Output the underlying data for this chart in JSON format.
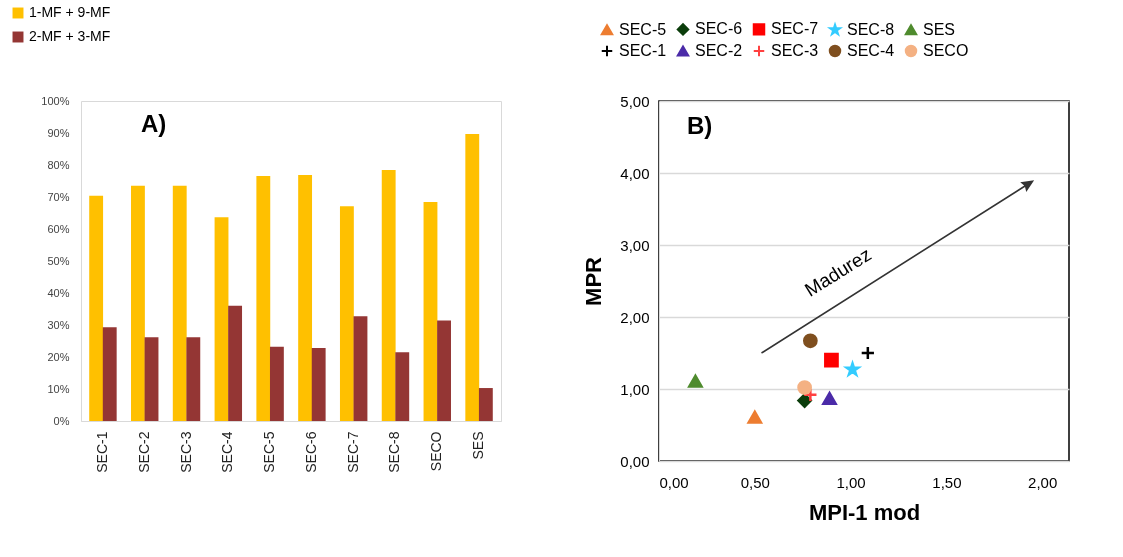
{
  "chart_data": [
    {
      "type": "bar",
      "categories": [
        "SEC-1",
        "SEC-2",
        "SEC-3",
        "SEC-4",
        "SEC-5",
        "SEC-6",
        "SEC-7",
        "SEC-8",
        "SECO",
        "SES"
      ],
      "series": [
        {
          "name": "1-MF + 9-MF",
          "color": "#ffc000",
          "values": [
            70.4,
            73.5,
            73.5,
            63.7,
            76.6,
            76.9,
            67.1,
            78.4,
            68.4,
            89.7
          ]
        },
        {
          "name": "2-MF + 3-MF",
          "color": "#943634",
          "values": [
            29.3,
            26.2,
            26.2,
            36.0,
            23.2,
            22.8,
            32.7,
            21.5,
            31.4,
            10.3
          ]
        }
      ],
      "ylim": [
        0,
        100
      ],
      "yticks": [
        {
          "value": 0,
          "label": "0%"
        },
        {
          "value": 10,
          "label": "10%"
        },
        {
          "value": 20,
          "label": "20%"
        },
        {
          "value": 30,
          "label": "30%"
        },
        {
          "value": 40,
          "label": "40%"
        },
        {
          "value": 50,
          "label": "50%"
        },
        {
          "value": 60,
          "label": "60%"
        },
        {
          "value": 70,
          "label": "70%"
        },
        {
          "value": 80,
          "label": "80%"
        },
        {
          "value": 90,
          "label": "90%"
        },
        {
          "value": 100,
          "label": "100%"
        }
      ],
      "grid": false,
      "legend": "top left",
      "annotations": [
        "A)"
      ]
    },
    {
      "type": "scatter",
      "xlabel": "MPI-1 mod",
      "ylabel": "MPR",
      "series": [
        {
          "name": "SEC-5",
          "color": "#ed7d31",
          "marker": "triangle",
          "x": [
            0.5
          ],
          "values": [
            0.61
          ]
        },
        {
          "name": "SEC-6",
          "color": "#0b3d0b",
          "marker": "diamond",
          "x": [
            0.76
          ],
          "values": [
            0.84
          ]
        },
        {
          "name": "SEC-7",
          "color": "#ff0000",
          "marker": "square",
          "x": [
            0.9
          ],
          "values": [
            1.4
          ]
        },
        {
          "name": "SEC-8",
          "color": "#33ccff",
          "marker": "star",
          "x": [
            1.01
          ],
          "values": [
            1.27
          ]
        },
        {
          "name": "SES",
          "color": "#4f8b2e",
          "marker": "triangle",
          "x": [
            0.19
          ],
          "values": [
            1.11
          ]
        },
        {
          "name": "SEC-1",
          "color": "#000000",
          "marker": "cross",
          "x": [
            1.09
          ],
          "values": [
            1.5
          ]
        },
        {
          "name": "SEC-2",
          "color": "#4b2ba8",
          "marker": "triangle",
          "x": [
            0.89
          ],
          "values": [
            0.87
          ]
        },
        {
          "name": "SEC-3",
          "color": "#ff4040",
          "marker": "cross",
          "x": [
            0.79
          ],
          "values": [
            0.92
          ]
        },
        {
          "name": "SEC-4",
          "color": "#7f4f1f",
          "marker": "circle",
          "x": [
            0.79
          ],
          "values": [
            1.67
          ]
        },
        {
          "name": "SECO",
          "color": "#f4b183",
          "marker": "circle",
          "x": [
            0.76
          ],
          "values": [
            1.02
          ]
        }
      ],
      "xlim": [
        0,
        2.14
      ],
      "xticks": [
        {
          "value": 0,
          "label": "0,00"
        },
        {
          "value": 0.5,
          "label": "0,50"
        },
        {
          "value": 1,
          "label": "1,00"
        },
        {
          "value": 1.5,
          "label": "1,50"
        },
        {
          "value": 2,
          "label": "2,00"
        }
      ],
      "ylim": [
        0,
        5
      ],
      "yticks": [
        {
          "value": 0,
          "label": "0,00"
        },
        {
          "value": 1,
          "label": "1,00"
        },
        {
          "value": 2,
          "label": "2,00"
        },
        {
          "value": 3,
          "label": "3,00"
        },
        {
          "value": 4,
          "label": "4,00"
        },
        {
          "value": 5,
          "label": "5,00"
        }
      ],
      "grid": "y",
      "legend": "top",
      "annotations": [
        "B)",
        "Madurez"
      ]
    }
  ]
}
